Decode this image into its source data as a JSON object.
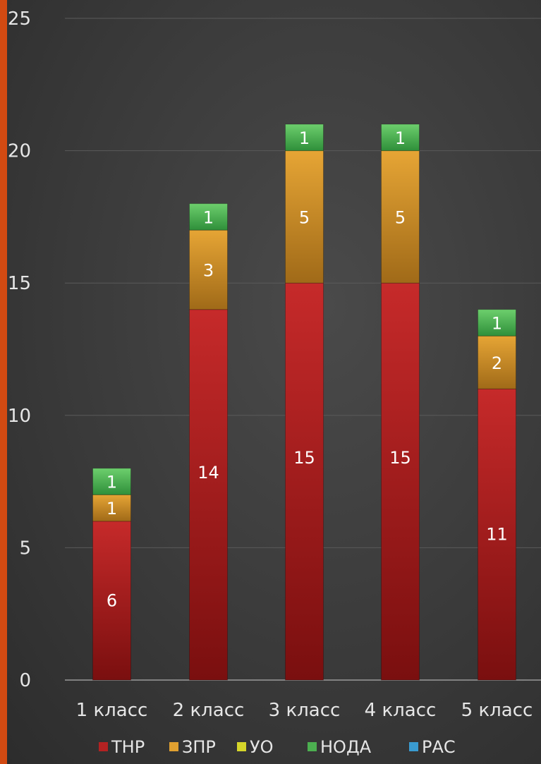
{
  "chart_data": {
    "type": "bar",
    "stacked": true,
    "categories": [
      "1 класс",
      "2 класс",
      "3 класс",
      "4 класс",
      "5 класс"
    ],
    "series": [
      {
        "name": "ТНР",
        "color": "#b32222",
        "values": [
          6,
          14,
          15,
          15,
          11
        ]
      },
      {
        "name": "ЗПР",
        "color": "#e0a030",
        "values": [
          1,
          3,
          5,
          5,
          2
        ]
      },
      {
        "name": "УО",
        "color": "#d6d62a",
        "values": [
          0,
          0,
          0,
          0,
          0
        ]
      },
      {
        "name": "НОДА",
        "color": "#4caf50",
        "values": [
          1,
          1,
          1,
          1,
          1
        ]
      },
      {
        "name": "РАС",
        "color": "#3a9bd0",
        "values": [
          0,
          0,
          0,
          0,
          0
        ]
      }
    ],
    "ylim": [
      0,
      25
    ],
    "yticks": [
      0,
      5,
      10,
      15,
      20,
      25
    ],
    "grid": true,
    "legend_position": "bottom",
    "title": "",
    "xlabel": "",
    "ylabel": ""
  }
}
